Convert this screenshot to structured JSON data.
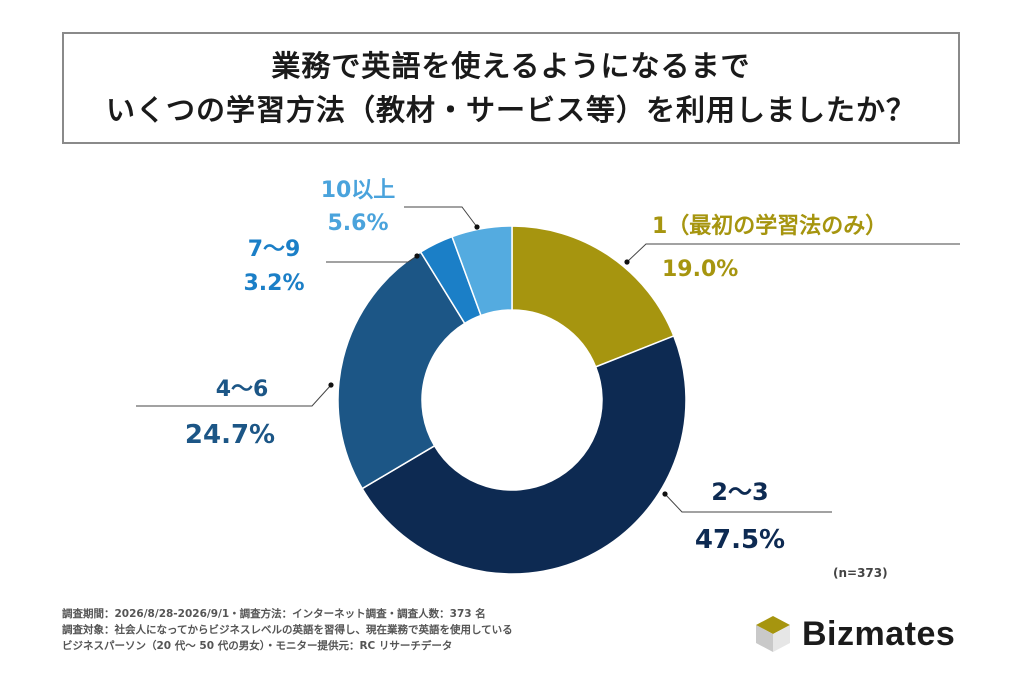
{
  "title": {
    "line1": "業務で英語を使えるようになるまで",
    "line2": "いくつの学習方法（教材・サービス等）を利用しましたか？"
  },
  "chart_data": {
    "type": "pie",
    "categories": [
      "1（最初の学習法のみ）",
      "2〜3",
      "4〜6",
      "7〜9",
      "10以上"
    ],
    "values": [
      19.0,
      47.5,
      24.7,
      3.2,
      5.6
    ],
    "value_labels": [
      "19.0%",
      "47.5%",
      "24.7%",
      "3.2%",
      "5.6%"
    ],
    "colors": [
      "#a6950f",
      "#0d2a52",
      "#1c5686",
      "#1b7fc7",
      "#54abe0"
    ],
    "label_colors": [
      "#a6950f",
      "#0d2a52",
      "#1c5686",
      "#1b7fc7",
      "#4aa3dc"
    ],
    "donut": true,
    "sample_size": "(n=373)"
  },
  "notes": [
    "調査期間：2026/8/28-2026/9/1・調査方法：インターネット調査・調査人数：373 名",
    "調査対象：社会人になってからビジネスレベルの英語を習得し、現在業務で英語を使用している",
    "ビジネスパーソン（20 代〜 50 代の男女）・モニター提供元：RC リサーチデータ"
  ],
  "logo": {
    "text": "Bizmates",
    "colors": [
      "#a6950f",
      "#c9c9c9",
      "#e6e6e6"
    ]
  }
}
